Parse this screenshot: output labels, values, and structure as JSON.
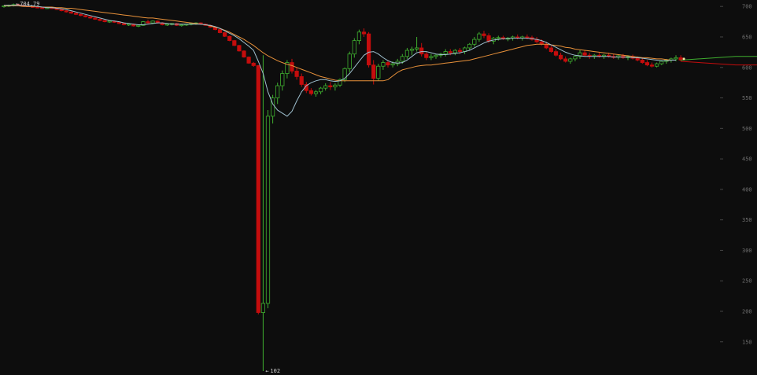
{
  "chart_data": {
    "type": "candlestick",
    "ylim": [
      102,
      708
    ],
    "y_ticks": [
      700,
      650,
      600,
      550,
      500,
      450,
      400,
      350,
      300,
      250,
      200,
      150
    ],
    "annotations": {
      "high_label": "704.79",
      "low_label": "102"
    },
    "candles": [
      [
        700,
        702,
        698,
        701
      ],
      [
        701,
        703,
        699,
        702
      ],
      [
        702,
        704.79,
        700,
        703
      ],
      [
        703,
        704,
        701,
        702
      ],
      [
        702,
        703,
        700,
        701
      ],
      [
        701,
        702,
        699,
        700
      ],
      [
        700,
        701,
        698,
        699
      ],
      [
        699,
        700,
        697,
        698
      ],
      [
        698,
        699,
        696,
        697
      ],
      [
        697,
        699,
        696,
        698
      ],
      [
        698,
        699,
        696,
        697
      ],
      [
        697,
        698,
        694,
        695
      ],
      [
        695,
        696,
        692,
        693
      ],
      [
        693,
        694,
        690,
        691
      ],
      [
        691,
        692,
        688,
        689
      ],
      [
        689,
        690,
        686,
        687
      ],
      [
        687,
        688,
        684,
        685
      ],
      [
        685,
        686,
        682,
        683
      ],
      [
        683,
        684,
        680,
        681
      ],
      [
        681,
        682,
        678,
        679
      ],
      [
        679,
        680,
        676,
        677
      ],
      [
        677,
        678,
        674,
        675
      ],
      [
        675,
        677,
        673,
        676
      ],
      [
        676,
        677,
        673,
        674
      ],
      [
        674,
        675,
        671,
        672
      ],
      [
        672,
        673,
        669,
        670
      ],
      [
        670,
        672,
        668,
        671
      ],
      [
        671,
        672,
        667,
        668
      ],
      [
        668,
        670,
        666,
        669
      ],
      [
        669,
        676,
        668,
        675
      ],
      [
        675,
        678,
        672,
        673
      ],
      [
        673,
        677,
        671,
        676
      ],
      [
        676,
        677,
        672,
        673
      ],
      [
        673,
        674,
        669,
        670
      ],
      [
        670,
        672,
        668,
        671
      ],
      [
        671,
        673,
        669,
        672
      ],
      [
        672,
        673,
        668,
        669
      ],
      [
        669,
        671,
        667,
        670
      ],
      [
        670,
        672,
        668,
        671
      ],
      [
        671,
        673,
        669,
        672
      ],
      [
        672,
        674,
        670,
        673
      ],
      [
        673,
        674,
        670,
        671
      ],
      [
        671,
        672,
        668,
        669
      ],
      [
        669,
        670,
        665,
        666
      ],
      [
        666,
        667,
        661,
        662
      ],
      [
        662,
        663,
        656,
        657
      ],
      [
        657,
        658,
        650,
        651
      ],
      [
        651,
        652,
        643,
        644
      ],
      [
        644,
        645,
        635,
        636
      ],
      [
        636,
        637,
        626,
        627
      ],
      [
        627,
        628,
        616,
        617
      ],
      [
        617,
        618,
        606,
        607
      ],
      [
        607,
        609,
        601,
        603
      ],
      [
        603,
        604,
        195,
        198
      ],
      [
        198,
        620,
        102,
        213
      ],
      [
        213,
        530,
        205,
        520
      ],
      [
        520,
        555,
        508,
        550
      ],
      [
        550,
        575,
        540,
        570
      ],
      [
        570,
        595,
        562,
        590
      ],
      [
        590,
        612,
        582,
        608
      ],
      [
        608,
        614,
        590,
        594
      ],
      [
        594,
        600,
        580,
        585
      ],
      [
        585,
        590,
        568,
        572
      ],
      [
        572,
        576,
        558,
        562
      ],
      [
        562,
        566,
        554,
        557
      ],
      [
        557,
        563,
        552,
        560
      ],
      [
        560,
        568,
        556,
        566
      ],
      [
        566,
        574,
        562,
        570
      ],
      [
        570,
        576,
        563,
        568
      ],
      [
        568,
        574,
        562,
        571
      ],
      [
        571,
        582,
        568,
        580
      ],
      [
        580,
        600,
        576,
        598
      ],
      [
        598,
        626,
        592,
        622
      ],
      [
        622,
        648,
        616,
        644
      ],
      [
        644,
        662,
        638,
        658
      ],
      [
        658,
        664,
        650,
        655
      ],
      [
        655,
        658,
        600,
        604
      ],
      [
        604,
        612,
        572,
        582
      ],
      [
        582,
        606,
        578,
        602
      ],
      [
        602,
        612,
        596,
        608
      ],
      [
        608,
        612,
        600,
        604
      ],
      [
        604,
        610,
        600,
        606
      ],
      [
        606,
        614,
        602,
        610
      ],
      [
        610,
        622,
        606,
        618
      ],
      [
        618,
        632,
        614,
        628
      ],
      [
        628,
        634,
        620,
        630
      ],
      [
        630,
        650,
        626,
        632
      ],
      [
        632,
        640,
        618,
        622
      ],
      [
        622,
        626,
        612,
        616
      ],
      [
        616,
        622,
        612,
        618
      ],
      [
        618,
        622,
        614,
        620
      ],
      [
        620,
        624,
        616,
        622
      ],
      [
        622,
        630,
        618,
        626
      ],
      [
        626,
        630,
        620,
        624
      ],
      [
        624,
        630,
        620,
        628
      ],
      [
        628,
        632,
        622,
        626
      ],
      [
        626,
        634,
        622,
        632
      ],
      [
        632,
        640,
        628,
        638
      ],
      [
        638,
        650,
        634,
        646
      ],
      [
        646,
        658,
        642,
        655
      ],
      [
        655,
        660,
        648,
        652
      ],
      [
        652,
        656,
        640,
        643
      ],
      [
        643,
        650,
        638,
        648
      ],
      [
        648,
        652,
        644,
        649
      ],
      [
        649,
        652,
        645,
        647
      ],
      [
        647,
        650,
        643,
        648
      ],
      [
        648,
        652,
        644,
        650
      ],
      [
        650,
        654,
        646,
        648
      ],
      [
        648,
        652,
        644,
        650
      ],
      [
        650,
        654,
        646,
        649
      ],
      [
        649,
        652,
        644,
        646
      ],
      [
        646,
        650,
        640,
        642
      ],
      [
        642,
        646,
        636,
        638
      ],
      [
        638,
        642,
        630,
        632
      ],
      [
        632,
        636,
        624,
        626
      ],
      [
        626,
        630,
        618,
        620
      ],
      [
        620,
        624,
        612,
        614
      ],
      [
        614,
        618,
        608,
        610
      ],
      [
        610,
        616,
        606,
        614
      ],
      [
        614,
        620,
        610,
        618
      ],
      [
        618,
        628,
        614,
        624
      ],
      [
        624,
        628,
        618,
        620
      ],
      [
        620,
        624,
        614,
        618
      ],
      [
        618,
        622,
        614,
        620
      ],
      [
        620,
        624,
        616,
        618
      ],
      [
        618,
        622,
        614,
        620
      ],
      [
        620,
        624,
        616,
        618
      ],
      [
        618,
        622,
        614,
        617
      ],
      [
        617,
        621,
        613,
        619
      ],
      [
        619,
        622,
        614,
        616
      ],
      [
        616,
        620,
        612,
        618
      ],
      [
        618,
        621,
        613,
        615
      ],
      [
        615,
        618,
        610,
        612
      ],
      [
        612,
        616,
        606,
        608
      ],
      [
        608,
        612,
        602,
        604
      ],
      [
        604,
        608,
        600,
        602
      ],
      [
        602,
        608,
        600,
        606
      ],
      [
        606,
        612,
        604,
        610
      ],
      [
        610,
        614,
        606,
        612
      ],
      [
        612,
        616,
        608,
        614
      ],
      [
        614,
        620,
        610,
        616
      ],
      [
        616,
        620,
        610,
        612
      ]
    ],
    "series": [
      {
        "color": "#e8913a",
        "values": [
          701,
          701,
          701,
          701,
          700,
          700,
          700,
          700,
          699,
          699,
          699,
          698,
          698,
          697,
          697,
          696,
          695,
          694,
          693,
          692,
          691,
          690,
          689,
          688,
          687,
          686,
          685,
          684,
          683,
          682,
          681,
          681,
          680,
          679,
          678,
          677,
          676,
          675,
          674,
          673,
          672,
          671,
          670,
          668,
          666,
          664,
          661,
          658,
          654,
          650,
          646,
          641,
          636,
          630,
          624,
          619,
          615,
          611,
          608,
          605,
          603,
          600,
          597,
          594,
          591,
          588,
          585,
          583,
          581,
          579,
          578,
          578,
          578,
          578,
          578,
          578,
          578,
          578,
          578,
          578,
          580,
          586,
          592,
          596,
          598,
          600,
          602,
          603,
          604,
          604,
          605,
          606,
          607,
          608,
          609,
          610,
          611,
          612,
          614,
          616,
          618,
          620,
          622,
          624,
          626,
          628,
          630,
          632,
          634,
          636,
          637,
          638,
          638,
          638,
          637,
          636,
          635,
          633,
          632,
          630,
          629,
          628,
          627,
          626,
          625,
          624,
          623,
          622,
          621,
          620,
          619,
          618,
          617,
          616,
          616,
          615,
          614,
          614,
          613,
          612,
          612
        ]
      },
      {
        "color": "#9fc0cf",
        "values": [
          702,
          702,
          702,
          702,
          702,
          701,
          701,
          700,
          699,
          698,
          698,
          697,
          696,
          695,
          693,
          691,
          689,
          687,
          685,
          683,
          681,
          679,
          677,
          676,
          675,
          673,
          672,
          671,
          670,
          670,
          671,
          672,
          673,
          673,
          672,
          671,
          671,
          671,
          671,
          671,
          671,
          671,
          670,
          669,
          667,
          664,
          660,
          656,
          652,
          647,
          641,
          635,
          628,
          610,
          590,
          560,
          540,
          530,
          525,
          520,
          528,
          545,
          560,
          570,
          575,
          578,
          580,
          580,
          578,
          577,
          578,
          582,
          590,
          600,
          610,
          620,
          625,
          626,
          622,
          616,
          611,
          608,
          607,
          608,
          612,
          618,
          624,
          626,
          626,
          624,
          622,
          621,
          621,
          622,
          623,
          624,
          626,
          628,
          632,
          636,
          640,
          643,
          645,
          646,
          647,
          647,
          648,
          648,
          648,
          648,
          647,
          646,
          644,
          641,
          637,
          633,
          629,
          625,
          622,
          620,
          619,
          618,
          618,
          618,
          618,
          618,
          618,
          617,
          617,
          617,
          617,
          616,
          616,
          615,
          614,
          613,
          612,
          611,
          611,
          612,
          612
        ]
      }
    ]
  }
}
